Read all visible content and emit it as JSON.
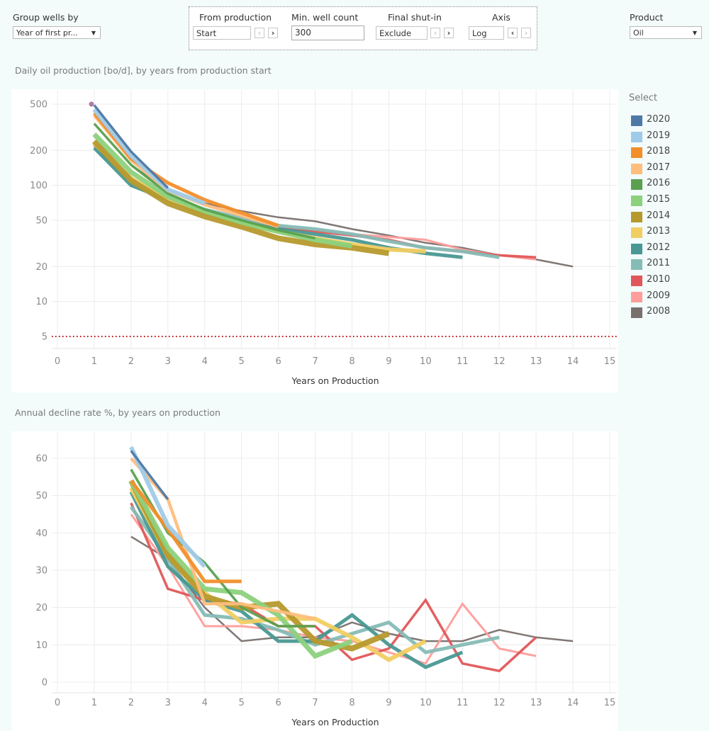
{
  "controls": {
    "group_by": {
      "label": "Group wells by",
      "value": "Year of first pr..."
    },
    "from_production": {
      "label": "From production",
      "value": "Start"
    },
    "min_well_count": {
      "label": "Min. well count",
      "value": "300"
    },
    "final_shut_in": {
      "label": "Final shut-in",
      "value": "Exclude"
    },
    "axis": {
      "label": "Axis",
      "value": "Log"
    },
    "product": {
      "label": "Product",
      "value": "Oil"
    }
  },
  "legend": {
    "title": "Select",
    "items": [
      {
        "label": "2020",
        "color": "#4e79a7"
      },
      {
        "label": "2019",
        "color": "#a0cbe8"
      },
      {
        "label": "2018",
        "color": "#f28e2b"
      },
      {
        "label": "2017",
        "color": "#ffbe7d"
      },
      {
        "label": "2016",
        "color": "#59a14f"
      },
      {
        "label": "2015",
        "color": "#8cd17d"
      },
      {
        "label": "2014",
        "color": "#b6992d"
      },
      {
        "label": "2013",
        "color": "#f1ce63"
      },
      {
        "label": "2012",
        "color": "#499894"
      },
      {
        "label": "2011",
        "color": "#86bcb6"
      },
      {
        "label": "2010",
        "color": "#e15759"
      },
      {
        "label": "2009",
        "color": "#ff9d9a"
      },
      {
        "label": "2008",
        "color": "#79706e"
      }
    ]
  },
  "chart_data": [
    {
      "type": "line",
      "title": "Daily oil production [bo/d], by years from production start",
      "xlabel": "Years on Production",
      "ylabel": "",
      "xlim": [
        0,
        15
      ],
      "ylim": [
        4,
        600
      ],
      "yscale": "log",
      "x_ticks": [
        "0",
        "1",
        "2",
        "3",
        "4",
        "5",
        "6",
        "7",
        "8",
        "9",
        "10",
        "11",
        "12",
        "13",
        "14",
        "15"
      ],
      "y_ticks": [
        "5",
        "10",
        "20",
        "50",
        "100",
        "200",
        "500"
      ],
      "y_tick_values": [
        5,
        10,
        20,
        50,
        100,
        200,
        500
      ],
      "reference_line": {
        "y": 5,
        "style": "dotted",
        "color": "#c00000"
      },
      "grid": true,
      "legend": "right",
      "series": [
        {
          "name": "2020",
          "x": [
            1,
            2,
            3
          ],
          "values": [
            490,
            195,
            95
          ]
        },
        {
          "name": "2019",
          "x": [
            1,
            2,
            3,
            4
          ],
          "values": [
            450,
            180,
            92,
            70
          ]
        },
        {
          "name": "2018",
          "x": [
            1,
            2,
            3,
            4,
            5,
            6
          ],
          "values": [
            420,
            170,
            105,
            75,
            58,
            45
          ]
        },
        {
          "name": "2017",
          "x": [
            1,
            2,
            3,
            4,
            5,
            6
          ],
          "values": [
            400,
            165,
            90,
            68,
            55,
            44
          ]
        },
        {
          "name": "2016",
          "x": [
            1,
            2,
            3,
            4,
            5,
            6,
            7
          ],
          "values": [
            340,
            150,
            85,
            62,
            50,
            41,
            35
          ]
        },
        {
          "name": "2015",
          "x": [
            1,
            2,
            3,
            4,
            5,
            6,
            7,
            8
          ],
          "values": [
            275,
            130,
            80,
            60,
            48,
            40,
            34,
            30
          ]
        },
        {
          "name": "2014",
          "x": [
            1,
            2,
            3,
            4,
            5,
            6,
            7,
            8,
            9
          ],
          "values": [
            240,
            110,
            70,
            54,
            44,
            35,
            31,
            29,
            26
          ]
        },
        {
          "name": "2013",
          "x": [
            1,
            2,
            3,
            4,
            5,
            6,
            7,
            8,
            9,
            10
          ],
          "values": [
            230,
            115,
            75,
            58,
            47,
            40,
            35,
            31,
            28,
            27
          ]
        },
        {
          "name": "2012",
          "x": [
            1,
            2,
            3,
            4,
            5,
            6,
            7,
            8,
            9,
            10,
            11
          ],
          "values": [
            210,
            100,
            75,
            58,
            48,
            42,
            38,
            34,
            29,
            26,
            24
          ]
        },
        {
          "name": "2011",
          "x": [
            1,
            2,
            3,
            4,
            5,
            6,
            7,
            8,
            9,
            10,
            11,
            12
          ],
          "values": [
            225,
            110,
            80,
            62,
            52,
            45,
            42,
            38,
            33,
            29,
            27,
            24
          ]
        },
        {
          "name": "2010",
          "x": [
            1,
            2,
            3,
            4,
            5,
            6,
            7,
            8,
            9,
            10,
            11,
            12,
            13
          ],
          "values": [
            220,
            108,
            78,
            60,
            50,
            43,
            40,
            37,
            34,
            29,
            27,
            25,
            24
          ]
        },
        {
          "name": "2009",
          "x": [
            1,
            2,
            3,
            4,
            5,
            6,
            7,
            8,
            9,
            10,
            11,
            12,
            13
          ],
          "values": [
            215,
            106,
            76,
            59,
            50,
            44,
            41,
            38,
            36,
            34,
            28,
            25,
            23
          ]
        },
        {
          "name": "2008",
          "x": [
            2,
            3,
            4,
            5,
            6,
            7,
            8,
            9,
            10,
            11,
            12,
            13,
            14
          ],
          "values": [
            150,
            90,
            70,
            60,
            53,
            49,
            42,
            37,
            32,
            29,
            25,
            23,
            20
          ]
        }
      ]
    },
    {
      "type": "line",
      "title": "Annual decline rate %, by years on production",
      "xlabel": "Years on Production",
      "ylabel": "",
      "xlim": [
        0,
        15
      ],
      "ylim": [
        -2,
        66
      ],
      "x_ticks": [
        "0",
        "1",
        "2",
        "3",
        "4",
        "5",
        "6",
        "7",
        "8",
        "9",
        "10",
        "11",
        "12",
        "13",
        "14",
        "15"
      ],
      "y_ticks": [
        "0",
        "10",
        "20",
        "30",
        "40",
        "50",
        "60"
      ],
      "y_tick_values": [
        0,
        10,
        20,
        30,
        40,
        50,
        60
      ],
      "grid": true,
      "legend": "right",
      "series": [
        {
          "name": "2020",
          "x": [
            2,
            3
          ],
          "values": [
            62,
            49
          ]
        },
        {
          "name": "2019",
          "x": [
            2,
            3,
            4
          ],
          "values": [
            63,
            42,
            31
          ]
        },
        {
          "name": "2018",
          "x": [
            2,
            3,
            4,
            5
          ],
          "values": [
            54,
            41,
            27,
            27
          ]
        },
        {
          "name": "2017",
          "x": [
            2,
            3,
            4,
            5,
            6,
            7
          ],
          "values": [
            60,
            49,
            21,
            21,
            19,
            17
          ]
        },
        {
          "name": "2016",
          "x": [
            2,
            3,
            4,
            5,
            6,
            7
          ],
          "values": [
            57,
            40,
            32,
            20,
            15,
            15
          ]
        },
        {
          "name": "2015",
          "x": [
            2,
            3,
            4,
            5,
            6,
            7,
            8
          ],
          "values": [
            54,
            36,
            25,
            24,
            18,
            7,
            11
          ]
        },
        {
          "name": "2014",
          "x": [
            2,
            3,
            4,
            5,
            6,
            7,
            8,
            9
          ],
          "values": [
            54,
            34,
            23,
            20,
            21,
            11,
            9,
            13
          ]
        },
        {
          "name": "2013",
          "x": [
            2,
            3,
            4,
            5,
            6,
            7,
            8,
            9,
            10
          ],
          "values": [
            52,
            34,
            24,
            16,
            17,
            17,
            12,
            6,
            11
          ]
        },
        {
          "name": "2012",
          "x": [
            2,
            3,
            4,
            5,
            6,
            7,
            8,
            9,
            10,
            11
          ],
          "values": [
            51,
            31,
            22,
            19,
            11,
            11,
            18,
            10,
            4,
            8
          ]
        },
        {
          "name": "2011",
          "x": [
            2,
            3,
            4,
            5,
            6,
            7,
            8,
            9,
            10,
            11,
            12
          ],
          "values": [
            47,
            33,
            18,
            17,
            14,
            10,
            13,
            16,
            8,
            10,
            12
          ]
        },
        {
          "name": "2010",
          "x": [
            2,
            3,
            4,
            5,
            6,
            7,
            8,
            9,
            10,
            11,
            12,
            13
          ],
          "values": [
            48,
            25,
            22,
            21,
            15,
            15,
            6,
            9,
            22,
            5,
            3,
            12
          ]
        },
        {
          "name": "2009",
          "x": [
            2,
            3,
            4,
            5,
            6,
            7,
            8,
            9,
            10,
            11,
            12,
            13
          ],
          "values": [
            45,
            31,
            15,
            15,
            14,
            12,
            11,
            8,
            5,
            21,
            9,
            7
          ]
        },
        {
          "name": "2008",
          "x": [
            2,
            3,
            4,
            5,
            6,
            7,
            8,
            9,
            10,
            11,
            12,
            13,
            14
          ],
          "values": [
            39,
            33,
            20,
            11,
            12,
            12,
            16,
            13,
            11,
            11,
            14,
            12,
            11
          ]
        }
      ]
    }
  ]
}
